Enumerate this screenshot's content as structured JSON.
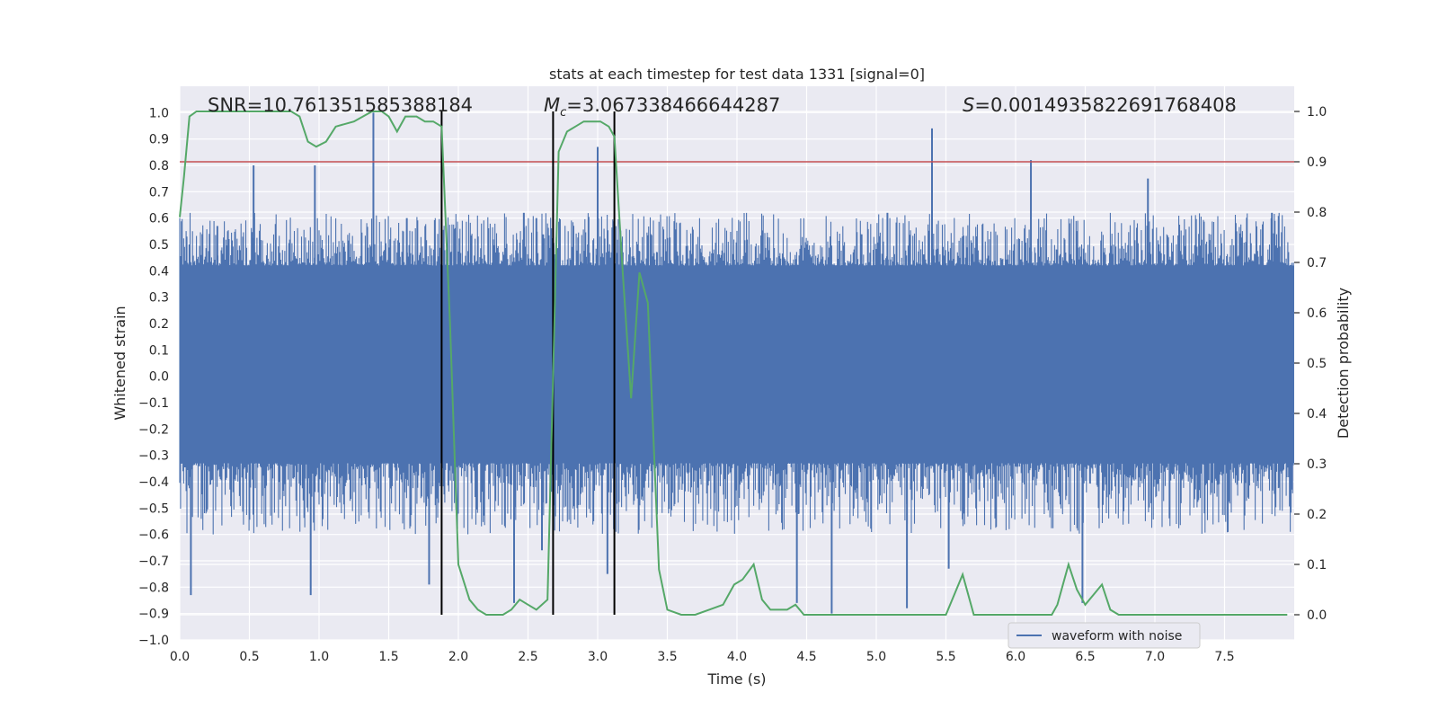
{
  "chart_data": {
    "type": "line",
    "title": "stats at each timestep for test data 1331 [signal=0]",
    "xlabel": "Time (s)",
    "ylabel_left": "Whitened strain",
    "ylabel_right": "Detection probability",
    "xlim": [
      0.0,
      8.0
    ],
    "ylim_left": [
      -1.0,
      1.1
    ],
    "ylim_right": [
      -0.05,
      1.05
    ],
    "x_ticks": [
      0.0,
      0.5,
      1.0,
      1.5,
      2.0,
      2.5,
      3.0,
      3.5,
      4.0,
      4.5,
      5.0,
      5.5,
      6.0,
      6.5,
      7.0,
      7.5
    ],
    "x_tick_labels": [
      "0.0",
      "0.5",
      "1.0",
      "1.5",
      "2.0",
      "2.5",
      "3.0",
      "3.5",
      "4.0",
      "4.5",
      "5.0",
      "5.5",
      "6.0",
      "6.5",
      "7.0",
      "7.5"
    ],
    "y_left_ticks": [
      -1.0,
      -0.9,
      -0.8,
      -0.7,
      -0.6,
      -0.5,
      -0.4,
      -0.3,
      -0.2,
      -0.1,
      0.0,
      0.1,
      0.2,
      0.3,
      0.4,
      0.5,
      0.6,
      0.7,
      0.8,
      0.9,
      1.0
    ],
    "y_left_tick_labels": [
      "−1.0",
      "−0.9",
      "−0.8",
      "−0.7",
      "−0.6",
      "−0.5",
      "−0.4",
      "−0.3",
      "−0.2",
      "−0.1",
      "0.0",
      "0.1",
      "0.2",
      "0.3",
      "0.4",
      "0.5",
      "0.6",
      "0.7",
      "0.8",
      "0.9",
      "1.0"
    ],
    "y_right_ticks": [
      0.0,
      0.1,
      0.2,
      0.3,
      0.4,
      0.5,
      0.6,
      0.7,
      0.8,
      0.9,
      1.0
    ],
    "y_right_tick_labels": [
      "0.0",
      "0.1",
      "0.2",
      "0.3",
      "0.4",
      "0.5",
      "0.6",
      "0.7",
      "0.8",
      "0.9",
      "1.0"
    ],
    "grid": true,
    "legend_position": "bottom-right",
    "colors": {
      "background": "#eaeaf2",
      "waveform": "#4c72b0",
      "probability": "#55a868",
      "threshold": "#c44e52",
      "markers": "#000000"
    },
    "annotations": {
      "snr": "SNR=10.761351585388184",
      "mc": "=3.067338466644287",
      "mc_symbol": "M",
      "mc_subscript": "c",
      "s": "=0.0014935822691768408",
      "s_symbol": "S"
    },
    "waveform": {
      "name": "waveform with noise",
      "axis": "left",
      "core_band": [
        -0.33,
        0.42
      ],
      "typical_peak_max": 0.62,
      "typical_peak_min": -0.6,
      "spikes": [
        {
          "x": 0.07,
          "y": 0.5
        },
        {
          "x": 0.08,
          "y": -0.83
        },
        {
          "x": 0.27,
          "y": 0.57
        },
        {
          "x": 0.53,
          "y": 0.8
        },
        {
          "x": 0.94,
          "y": -0.83
        },
        {
          "x": 0.97,
          "y": 0.8
        },
        {
          "x": 1.39,
          "y": 1.0
        },
        {
          "x": 1.63,
          "y": 0.6
        },
        {
          "x": 1.79,
          "y": -0.79
        },
        {
          "x": 2.4,
          "y": -0.86
        },
        {
          "x": 2.47,
          "y": 0.62
        },
        {
          "x": 2.56,
          "y": 0.6
        },
        {
          "x": 2.6,
          "y": -0.66
        },
        {
          "x": 2.93,
          "y": 0.5
        },
        {
          "x": 3.0,
          "y": 0.87
        },
        {
          "x": 3.07,
          "y": -0.75
        },
        {
          "x": 4.43,
          "y": -0.86
        },
        {
          "x": 4.68,
          "y": -0.9
        },
        {
          "x": 5.08,
          "y": 0.62
        },
        {
          "x": 5.22,
          "y": -0.88
        },
        {
          "x": 5.4,
          "y": 0.94
        },
        {
          "x": 5.52,
          "y": -0.73
        },
        {
          "x": 6.11,
          "y": 0.82
        },
        {
          "x": 6.48,
          "y": -0.86
        },
        {
          "x": 6.95,
          "y": 0.75
        },
        {
          "x": 7.84,
          "y": 0.62
        }
      ]
    },
    "probability": {
      "name": "detection probability",
      "axis": "right",
      "x": [
        0.0,
        0.03,
        0.07,
        0.12,
        0.2,
        0.3,
        0.4,
        0.5,
        0.6,
        0.7,
        0.8,
        0.86,
        0.92,
        0.98,
        1.05,
        1.12,
        1.25,
        1.38,
        1.45,
        1.5,
        1.56,
        1.62,
        1.7,
        1.76,
        1.82,
        1.88,
        1.94,
        2.0,
        2.08,
        2.14,
        2.2,
        2.26,
        2.32,
        2.38,
        2.44,
        2.5,
        2.56,
        2.64,
        2.72,
        2.78,
        2.84,
        2.9,
        2.96,
        3.02,
        3.08,
        3.12,
        3.18,
        3.24,
        3.3,
        3.36,
        3.44,
        3.5,
        3.6,
        3.7,
        3.8,
        3.9,
        3.98,
        4.04,
        4.12,
        4.18,
        4.24,
        4.3,
        4.36,
        4.42,
        4.48,
        4.55,
        4.62,
        4.7,
        4.8,
        4.9,
        5.0,
        5.2,
        5.4,
        5.5,
        5.56,
        5.62,
        5.7,
        5.8,
        5.9,
        6.0,
        6.1,
        6.2,
        6.26,
        6.3,
        6.38,
        6.44,
        6.5,
        6.56,
        6.62,
        6.68,
        6.74,
        6.82,
        6.9,
        7.0,
        7.1,
        7.3,
        7.6,
        7.95
      ],
      "y": [
        0.79,
        0.87,
        0.99,
        1.0,
        1.0,
        1.0,
        1.0,
        1.0,
        1.0,
        1.0,
        1.0,
        0.99,
        0.94,
        0.93,
        0.94,
        0.97,
        0.98,
        1.0,
        1.0,
        0.99,
        0.96,
        0.99,
        0.99,
        0.98,
        0.98,
        0.97,
        0.58,
        0.1,
        0.03,
        0.01,
        0.0,
        0.0,
        0.0,
        0.01,
        0.03,
        0.02,
        0.01,
        0.03,
        0.92,
        0.96,
        0.97,
        0.98,
        0.98,
        0.98,
        0.97,
        0.95,
        0.68,
        0.43,
        0.68,
        0.62,
        0.09,
        0.01,
        0.0,
        0.0,
        0.01,
        0.02,
        0.06,
        0.07,
        0.1,
        0.03,
        0.01,
        0.01,
        0.01,
        0.02,
        0.0,
        0.0,
        0.0,
        0.0,
        0.0,
        0.0,
        0.0,
        0.0,
        0.0,
        0.0,
        0.04,
        0.08,
        0.0,
        0.0,
        0.0,
        0.0,
        0.0,
        0.0,
        0.0,
        0.02,
        0.1,
        0.05,
        0.02,
        0.04,
        0.06,
        0.01,
        0.0,
        0.0,
        0.0,
        0.0,
        0.0,
        0.0,
        0.0,
        0.0
      ]
    },
    "threshold": {
      "axis": "right",
      "y": 0.9
    },
    "vertical_markers": [
      {
        "x": 1.88,
        "y_top": 1.0
      },
      {
        "x": 2.68,
        "y_top": 1.0
      },
      {
        "x": 3.12,
        "y_top": 1.0
      }
    ]
  }
}
